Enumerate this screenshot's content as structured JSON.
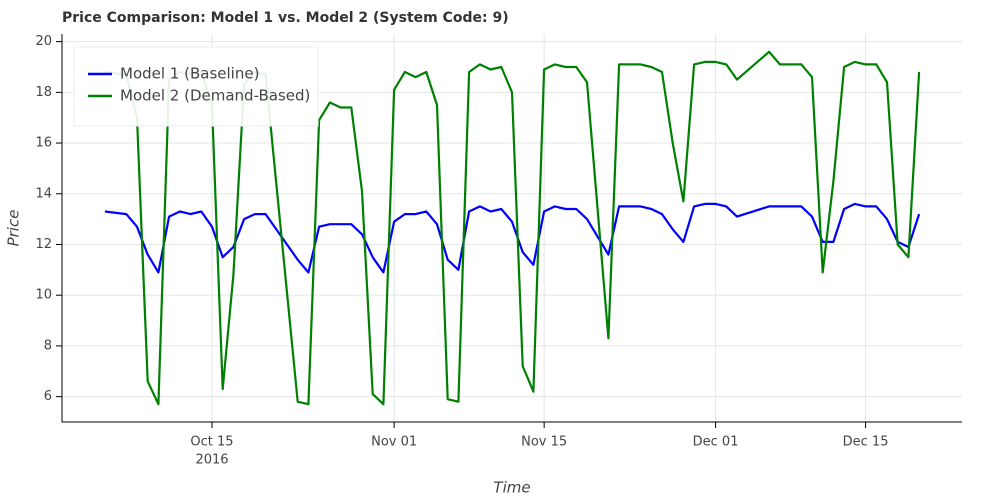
{
  "chart_data": {
    "type": "line",
    "title": "Price Comparison: Model 1 vs. Model 2 (System Code: 9)",
    "x_label": "Time",
    "y_label": "Price",
    "x": [
      "2016-10-05",
      "2016-10-07",
      "2016-10-08",
      "2016-10-09",
      "2016-10-10",
      "2016-10-11",
      "2016-10-12",
      "2016-10-13",
      "2016-10-14",
      "2016-10-15",
      "2016-10-16",
      "2016-10-17",
      "2016-10-18",
      "2016-10-19",
      "2016-10-20",
      "2016-10-23",
      "2016-10-24",
      "2016-10-25",
      "2016-10-26",
      "2016-10-27",
      "2016-10-28",
      "2016-10-29",
      "2016-10-30",
      "2016-10-31",
      "2016-11-01",
      "2016-11-02",
      "2016-11-03",
      "2016-11-04",
      "2016-11-05",
      "2016-11-06",
      "2016-11-07",
      "2016-11-08",
      "2016-11-09",
      "2016-11-10",
      "2016-11-11",
      "2016-11-12",
      "2016-11-13",
      "2016-11-14",
      "2016-11-15",
      "2016-11-16",
      "2016-11-17",
      "2016-11-18",
      "2016-11-19",
      "2016-11-21",
      "2016-11-22",
      "2016-11-23",
      "2016-11-24",
      "2016-11-25",
      "2016-11-26",
      "2016-11-27",
      "2016-11-28",
      "2016-11-29",
      "2016-11-30",
      "2016-12-01",
      "2016-12-02",
      "2016-12-03",
      "2016-12-06",
      "2016-12-07",
      "2016-12-08",
      "2016-12-09",
      "2016-12-10",
      "2016-12-11",
      "2016-12-12",
      "2016-12-13",
      "2016-12-14",
      "2016-12-15",
      "2016-12-16",
      "2016-12-17",
      "2016-12-18",
      "2016-12-19",
      "2016-12-20"
    ],
    "series": [
      {
        "name": "Model 1 (Baseline)",
        "color": "#0000ff",
        "values": [
          13.3,
          13.2,
          12.7,
          11.6,
          10.9,
          13.1,
          13.3,
          13.2,
          13.3,
          12.7,
          11.5,
          11.9,
          13.0,
          13.2,
          13.2,
          11.4,
          10.9,
          12.7,
          12.8,
          12.8,
          12.8,
          12.4,
          11.5,
          10.9,
          12.9,
          13.2,
          13.2,
          13.3,
          12.8,
          11.4,
          11.0,
          13.3,
          13.5,
          13.3,
          13.4,
          12.9,
          11.7,
          11.2,
          13.3,
          13.5,
          13.4,
          13.4,
          13.0,
          11.6,
          13.5,
          13.5,
          13.5,
          13.4,
          13.2,
          12.6,
          12.1,
          13.5,
          13.6,
          13.6,
          13.5,
          13.1,
          13.5,
          13.5,
          13.5,
          13.5,
          13.1,
          12.1,
          12.1,
          13.4,
          13.6,
          13.5,
          13.5,
          13.0,
          12.1,
          11.9,
          13.2
        ]
      },
      {
        "name": "Model 2 (Demand-Based)",
        "color": "#008000",
        "values": [
          18.8,
          18.7,
          17.0,
          6.6,
          5.7,
          18.5,
          18.8,
          18.7,
          18.8,
          17.5,
          6.3,
          10.8,
          18.3,
          18.8,
          18.7,
          5.8,
          5.7,
          16.9,
          17.6,
          17.4,
          17.4,
          14.1,
          6.1,
          5.7,
          18.1,
          18.8,
          18.6,
          18.8,
          17.5,
          5.9,
          5.8,
          18.8,
          19.1,
          18.9,
          19.0,
          18.0,
          7.2,
          6.2,
          18.9,
          19.1,
          19.0,
          19.0,
          18.4,
          8.3,
          19.1,
          19.1,
          19.1,
          19.0,
          18.8,
          16.0,
          13.7,
          19.1,
          19.2,
          19.2,
          19.1,
          18.5,
          19.6,
          19.1,
          19.1,
          19.1,
          18.6,
          10.9,
          14.5,
          19.0,
          19.2,
          19.1,
          19.1,
          18.4,
          12.0,
          11.5,
          18.8
        ]
      }
    ],
    "xlim": [
      "2016-10-01",
      "2016-12-24"
    ],
    "xticks": [
      {
        "value": "2016-10-15",
        "label": "Oct 15"
      },
      {
        "value": "2016-11-01",
        "label": "Nov 01"
      },
      {
        "value": "2016-11-15",
        "label": "Nov 15"
      },
      {
        "value": "2016-12-01",
        "label": "Dec 01"
      },
      {
        "value": "2016-12-15",
        "label": "Dec 15"
      }
    ],
    "xtick_year": "2016",
    "ylim": [
      5,
      20.3
    ],
    "yticks": [
      6,
      8,
      10,
      12,
      14,
      16,
      18,
      20
    ],
    "grid": true,
    "legend": "top-left"
  }
}
